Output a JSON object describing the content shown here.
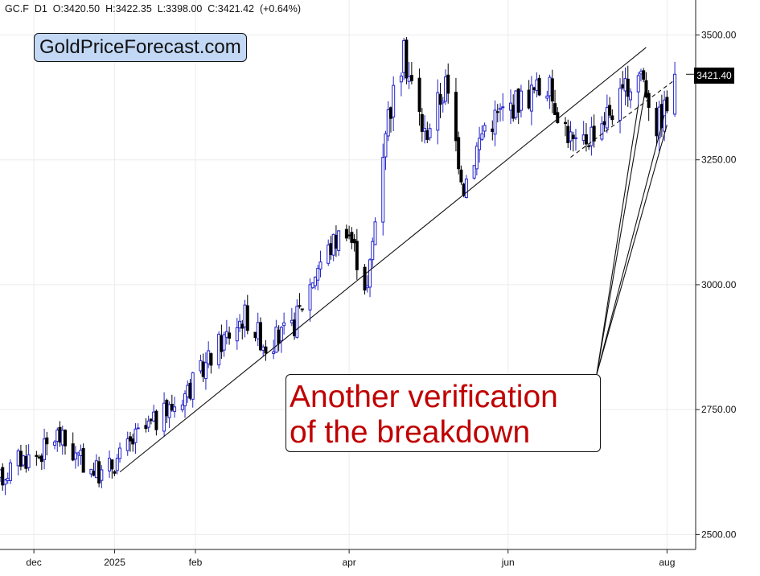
{
  "header": {
    "symbol": "GC.F",
    "timeframe": "D1",
    "open_label": "O:3420.50",
    "high_label": "H:3422.35",
    "low_label": "L:3398.00",
    "close_label": "C:3421.42",
    "change_label": "(+0.64%)"
  },
  "brand_text": "GoldPriceForecast.com",
  "annotation": {
    "line1": "Another verification",
    "line2": "of the breakdown",
    "color": "#c00000"
  },
  "last_price_label": "3421.40",
  "chart_data": {
    "type": "candlestick",
    "title": "",
    "xlabel": "",
    "ylabel": "",
    "ylim": [
      2470,
      3570
    ],
    "y_ticks": [
      2500,
      2750,
      3000,
      3250,
      3500
    ],
    "y_tick_labels": [
      "2500.00",
      "2750.00",
      "3000.00",
      "3250.00",
      "3500.00"
    ],
    "x_ticks": [
      "2024-12-01",
      "2025-01-01",
      "2025-02-01",
      "2025-04-01",
      "2025-06-01",
      "2025-08-01"
    ],
    "x_tick_labels": [
      "dec",
      "2025",
      "feb",
      "apr",
      "jun",
      "aug"
    ],
    "xlim": [
      "2024-11-18",
      "2025-08-12"
    ],
    "grid": true,
    "up_color": "#2222cc",
    "down_color": "#000000",
    "last_price": 3421.4,
    "waypoints": [
      [
        "2024-11-18",
        2610
      ],
      [
        "2024-11-25",
        2650
      ],
      [
        "2024-12-03",
        2660
      ],
      [
        "2024-12-10",
        2700
      ],
      [
        "2024-12-18",
        2650
      ],
      [
        "2024-12-27",
        2620
      ],
      [
        "2025-01-02",
        2650
      ],
      [
        "2025-01-10",
        2700
      ],
      [
        "2025-01-20",
        2740
      ],
      [
        "2025-01-31",
        2800
      ],
      [
        "2025-02-10",
        2880
      ],
      [
        "2025-02-20",
        2940
      ],
      [
        "2025-02-28",
        2880
      ],
      [
        "2025-03-10",
        2910
      ],
      [
        "2025-03-20",
        3040
      ],
      [
        "2025-03-31",
        3120
      ],
      [
        "2025-04-08",
        2990
      ],
      [
        "2025-04-15",
        3320
      ],
      [
        "2025-04-22",
        3460
      ],
      [
        "2025-04-30",
        3300
      ],
      [
        "2025-05-08",
        3400
      ],
      [
        "2025-05-15",
        3200
      ],
      [
        "2025-05-23",
        3320
      ],
      [
        "2025-06-05",
        3370
      ],
      [
        "2025-06-16",
        3400
      ],
      [
        "2025-06-27",
        3270
      ],
      [
        "2025-07-07",
        3330
      ],
      [
        "2025-07-14",
        3370
      ],
      [
        "2025-07-22",
        3430
      ],
      [
        "2025-07-28",
        3320
      ],
      [
        "2025-08-01",
        3360
      ],
      [
        "2025-08-04",
        3421
      ]
    ],
    "trendlines": [
      {
        "style": "solid",
        "from": [
          "2025-01-03",
          2625
        ],
        "to": [
          "2025-07-24",
          3475
        ]
      },
      {
        "style": "dashed",
        "from": [
          "2025-06-25",
          3255
        ],
        "to": [
          "2025-08-04",
          3410
        ]
      }
    ],
    "annotation_pointers": [
      {
        "date": "2025-07-21",
        "value": 3360
      },
      {
        "date": "2025-07-24",
        "value": 3400
      },
      {
        "date": "2025-07-31",
        "value": 3340
      },
      {
        "date": "2025-08-01",
        "value": 3320
      }
    ]
  }
}
